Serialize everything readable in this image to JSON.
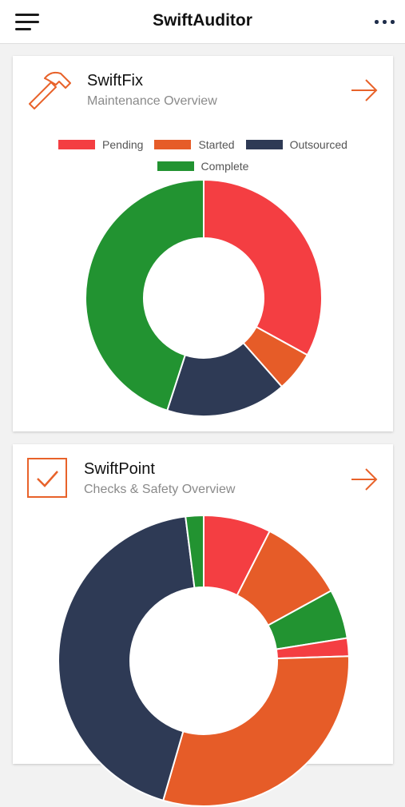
{
  "app": {
    "title": "SwiftAuditor"
  },
  "cards": [
    {
      "title": "SwiftFix",
      "subtitle": "Maintenance Overview",
      "icon": "hammer-icon",
      "accent": "#e8622a"
    },
    {
      "title": "SwiftPoint",
      "subtitle": "Checks & Safety Overview",
      "icon": "checkbox-icon",
      "accent": "#e8622a"
    }
  ],
  "chart_data": [
    {
      "type": "pie",
      "legend": [
        "Pending",
        "Started",
        "Outsourced",
        "Complete"
      ],
      "colors": [
        "#f43e42",
        "#e65c28",
        "#2e3a55",
        "#229331"
      ],
      "values": [
        33,
        5.5,
        16.5,
        45
      ],
      "legend_position": "top"
    },
    {
      "type": "pie",
      "colors": [
        "#f43e42",
        "#e65c28",
        "#229331",
        "#f43e42",
        "#e65c28",
        "#2e3a55",
        "#229331"
      ],
      "values": [
        7.5,
        9.5,
        5.5,
        2,
        30,
        43.5,
        2
      ]
    }
  ]
}
